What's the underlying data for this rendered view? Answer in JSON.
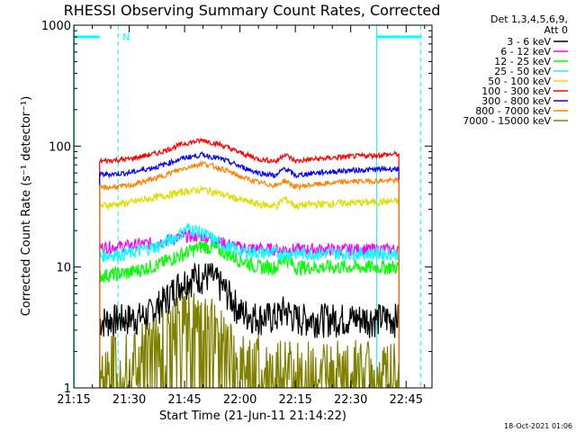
{
  "chart_data": {
    "type": "line",
    "title": "RHESSI Observing Summary Count Rates, Corrected",
    "xlabel": "Start Time (21-Jun-11 21:14:22)",
    "ylabel": "Corrected Count Rate (s⁻¹ detector⁻¹)",
    "y_scale": "log",
    "ylim": [
      1,
      1000
    ],
    "y_ticks": [
      {
        "value": 1,
        "label": "1"
      },
      {
        "value": 10,
        "label": "10"
      },
      {
        "value": 100,
        "label": "100"
      },
      {
        "value": 1000,
        "label": "1000"
      }
    ],
    "xlim": [
      "21:15",
      "22:52"
    ],
    "x_ticks": [
      "21:15",
      "21:30",
      "21:45",
      "22:00",
      "22:15",
      "22:30",
      "22:45"
    ],
    "legend_header": [
      "Det 1,3,4,5,6,9,",
      "Att 0"
    ],
    "legend_placement": "right",
    "data_start": "21:22",
    "data_end": "22:43",
    "series": [
      {
        "name": "3 - 6 keV",
        "color": "#000000",
        "points": [
          [
            "21:22",
            3.6
          ],
          [
            "21:25",
            3.7
          ],
          [
            "21:30",
            3.8
          ],
          [
            "21:35",
            4.0
          ],
          [
            "21:40",
            5.5
          ],
          [
            "21:44",
            7.5
          ],
          [
            "21:48",
            8.5
          ],
          [
            "21:52",
            8.5
          ],
          [
            "21:56",
            6.5
          ],
          [
            "22:00",
            4.3
          ],
          [
            "22:05",
            3.9
          ],
          [
            "22:10",
            3.9
          ],
          [
            "22:12",
            4.5
          ],
          [
            "22:15",
            3.8
          ],
          [
            "22:20",
            3.8
          ],
          [
            "22:30",
            3.8
          ],
          [
            "22:40",
            3.8
          ],
          [
            "22:43",
            3.8
          ]
        ]
      },
      {
        "name": "6 - 12 keV",
        "color": "#ff00ff",
        "points": [
          [
            "21:22",
            14.5
          ],
          [
            "21:30",
            15
          ],
          [
            "21:38",
            16
          ],
          [
            "21:45",
            18
          ],
          [
            "21:50",
            18
          ],
          [
            "21:55",
            16
          ],
          [
            "22:00",
            14.5
          ],
          [
            "22:10",
            14
          ],
          [
            "22:20",
            14
          ],
          [
            "22:30",
            14
          ],
          [
            "22:43",
            14
          ]
        ]
      },
      {
        "name": "12 - 25 keV",
        "color": "#00ff00",
        "points": [
          [
            "21:22",
            8.5
          ],
          [
            "21:30",
            9
          ],
          [
            "21:38",
            10.5
          ],
          [
            "21:45",
            13
          ],
          [
            "21:50",
            15
          ],
          [
            "21:54",
            14
          ],
          [
            "22:00",
            11.5
          ],
          [
            "22:05",
            10
          ],
          [
            "22:10",
            10
          ],
          [
            "22:12",
            12
          ],
          [
            "22:15",
            10
          ],
          [
            "22:20",
            10
          ],
          [
            "22:30",
            10
          ],
          [
            "22:43",
            10
          ]
        ]
      },
      {
        "name": "25 - 50 keV",
        "color": "#00ffff",
        "points": [
          [
            "21:22",
            12.5
          ],
          [
            "21:30",
            13
          ],
          [
            "21:38",
            15
          ],
          [
            "21:43",
            18
          ],
          [
            "21:46",
            21
          ],
          [
            "21:50",
            19
          ],
          [
            "21:55",
            15.5
          ],
          [
            "22:00",
            13.5
          ],
          [
            "22:10",
            13
          ],
          [
            "22:20",
            13
          ],
          [
            "22:30",
            13
          ],
          [
            "22:43",
            13
          ]
        ]
      },
      {
        "name": "50 - 100 keV",
        "color": "#dddd00",
        "points": [
          [
            "21:22",
            32
          ],
          [
            "21:30",
            34
          ],
          [
            "21:38",
            38
          ],
          [
            "21:45",
            42
          ],
          [
            "21:50",
            44
          ],
          [
            "21:55",
            40
          ],
          [
            "22:00",
            36
          ],
          [
            "22:05",
            33
          ],
          [
            "22:10",
            32
          ],
          [
            "22:12",
            37
          ],
          [
            "22:15",
            32
          ],
          [
            "22:20",
            33
          ],
          [
            "22:30",
            34
          ],
          [
            "22:43",
            35
          ]
        ]
      },
      {
        "name": "100 - 300 keV",
        "color": "#ff0000",
        "points": [
          [
            "21:22",
            75
          ],
          [
            "21:30",
            78
          ],
          [
            "21:38",
            88
          ],
          [
            "21:45",
            105
          ],
          [
            "21:50",
            112
          ],
          [
            "21:55",
            102
          ],
          [
            "22:00",
            88
          ],
          [
            "22:05",
            78
          ],
          [
            "22:10",
            75
          ],
          [
            "22:12",
            86
          ],
          [
            "22:15",
            75
          ],
          [
            "22:20",
            78
          ],
          [
            "22:30",
            82
          ],
          [
            "22:43",
            86
          ]
        ]
      },
      {
        "name": "300 - 800 keV",
        "color": "#0000ff",
        "points": [
          [
            "21:22",
            58
          ],
          [
            "21:30",
            60
          ],
          [
            "21:38",
            68
          ],
          [
            "21:45",
            80
          ],
          [
            "21:50",
            85
          ],
          [
            "21:55",
            78
          ],
          [
            "22:00",
            68
          ],
          [
            "22:05",
            60
          ],
          [
            "22:10",
            57
          ],
          [
            "22:12",
            66
          ],
          [
            "22:15",
            57
          ],
          [
            "22:20",
            60
          ],
          [
            "22:30",
            63
          ],
          [
            "22:43",
            65
          ]
        ]
      },
      {
        "name": "800 - 7000 keV",
        "color": "#ff8000",
        "points": [
          [
            "21:22",
            45
          ],
          [
            "21:30",
            47
          ],
          [
            "21:38",
            55
          ],
          [
            "21:45",
            66
          ],
          [
            "21:50",
            72
          ],
          [
            "21:55",
            65
          ],
          [
            "22:00",
            56
          ],
          [
            "22:05",
            50
          ],
          [
            "22:10",
            47
          ],
          [
            "22:12",
            52
          ],
          [
            "22:15",
            46
          ],
          [
            "22:20",
            48
          ],
          [
            "22:30",
            51
          ],
          [
            "22:43",
            52
          ]
        ]
      },
      {
        "name": "7000 - 15000 keV",
        "color": "#808000",
        "points": [
          [
            "21:22",
            1.8
          ],
          [
            "21:28",
            2.0
          ],
          [
            "21:35",
            2.4
          ],
          [
            "21:42",
            3.8
          ],
          [
            "21:48",
            4.4
          ],
          [
            "21:52",
            4.0
          ],
          [
            "21:56",
            2.8
          ],
          [
            "22:00",
            2.0
          ],
          [
            "22:05",
            1.8
          ],
          [
            "22:15",
            1.6
          ],
          [
            "22:25",
            1.6
          ],
          [
            "22:35",
            1.6
          ],
          [
            "22:43",
            1.6
          ]
        ]
      }
    ],
    "annotations": {
      "night_markers": [
        {
          "start": "21:15",
          "end": "21:22",
          "color": "#00ffff",
          "level": 800
        },
        {
          "start": "22:37",
          "end": "22:49",
          "color": "#00ffff",
          "level": 800
        }
      ],
      "saa_markers": [
        {
          "time": "21:27",
          "label": "N",
          "color": "#00ffff"
        },
        {
          "time": "22:49",
          "label": "",
          "color": "#00ffff"
        }
      ]
    },
    "grid": false
  },
  "stamp": "18-Oct-2021 01:06"
}
